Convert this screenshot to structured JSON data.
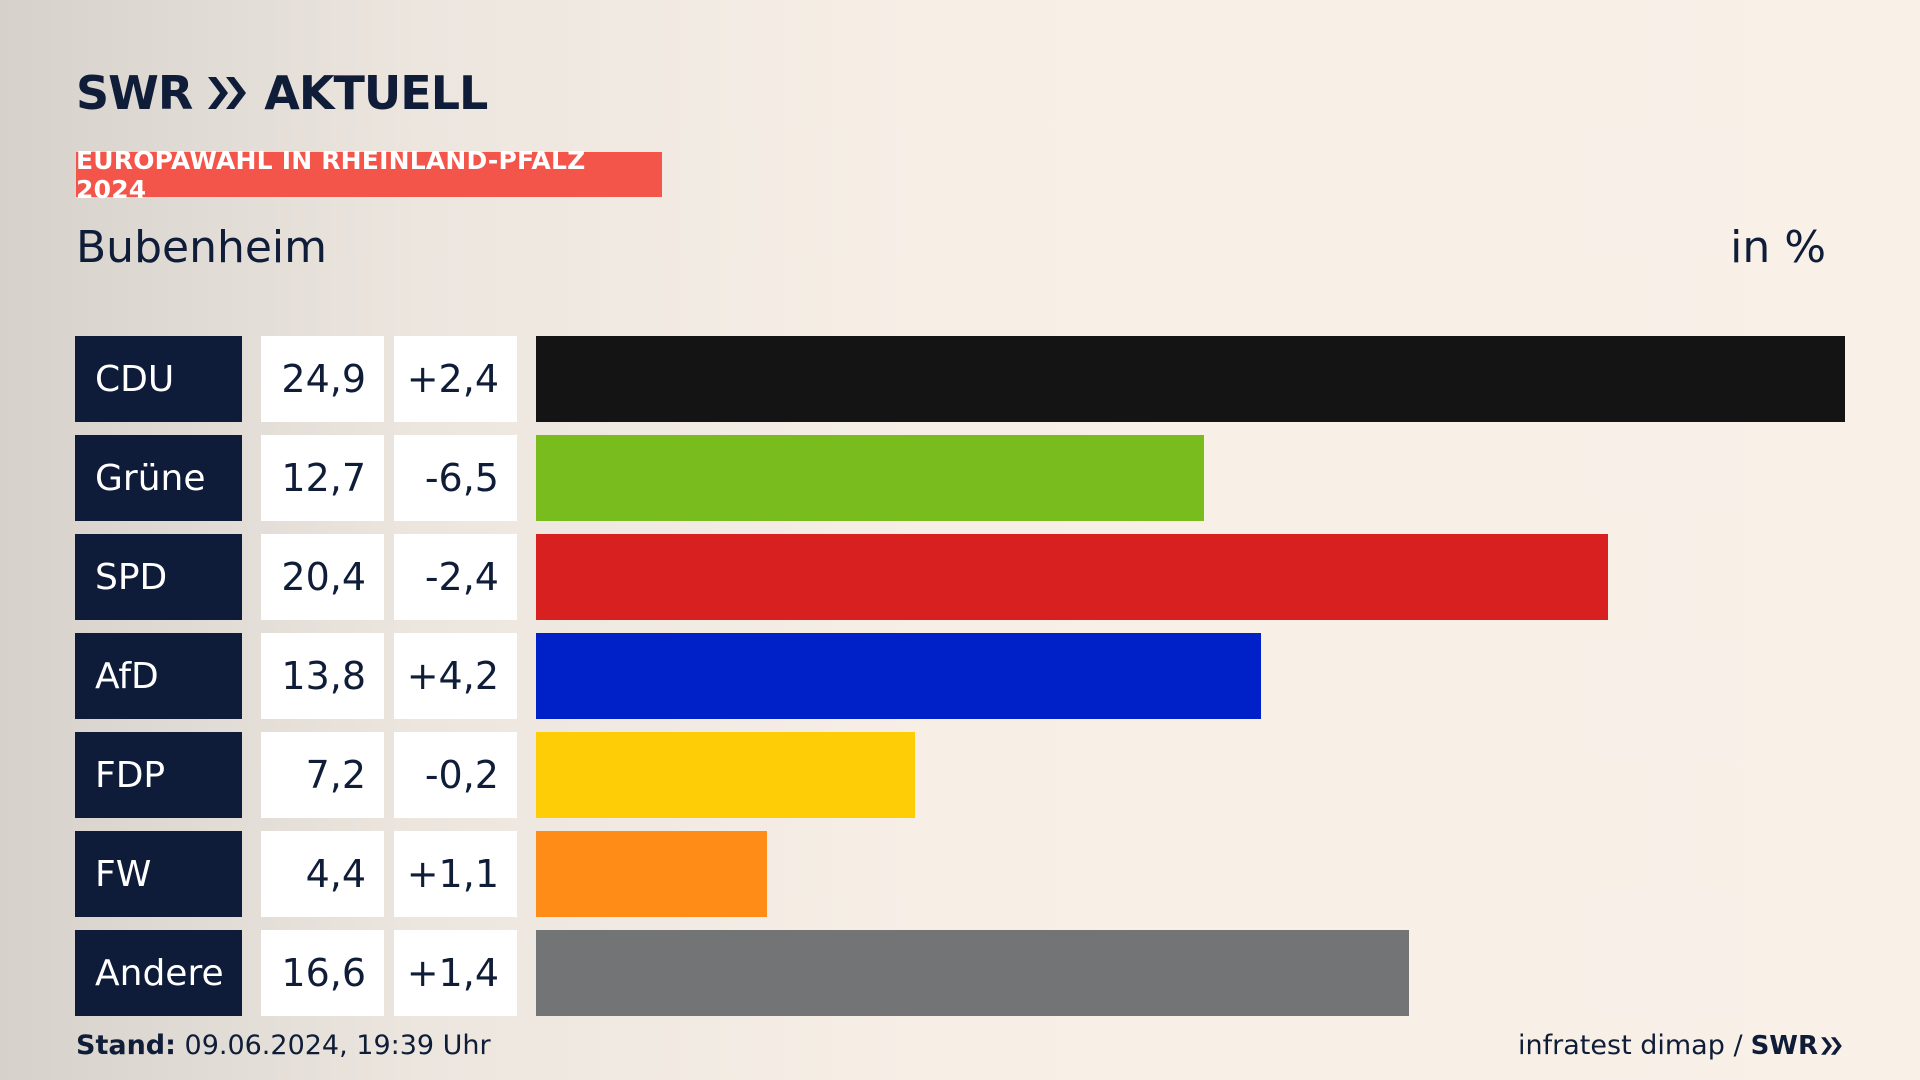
{
  "brand": {
    "logo_text": "SWR",
    "logo_suffix": "AKTUELL"
  },
  "tag_label": "EUROPAWAHL IN RHEINLAND-PFALZ 2024",
  "place": "Bubenheim",
  "unit_label": "in %",
  "footer": {
    "stand_label": "Stand:",
    "stand_value": "09.06.2024, 19:39 Uhr",
    "source": "infratest dimap /",
    "source_logo": "SWR"
  },
  "chart_data": {
    "type": "bar",
    "orientation": "horizontal",
    "categories": [
      "CDU",
      "Grüne",
      "SPD",
      "AfD",
      "FDP",
      "FW",
      "Andere"
    ],
    "values": [
      24.9,
      12.7,
      20.4,
      13.8,
      7.2,
      4.4,
      16.6
    ],
    "value_labels": [
      "24,9",
      "12,7",
      "20,4",
      "13,8",
      "7,2",
      "4,4",
      "16,6"
    ],
    "changes": [
      2.4,
      -6.5,
      -2.4,
      4.2,
      -0.2,
      1.1,
      1.4
    ],
    "change_labels": [
      "+2,4",
      "-6,5",
      "-2,4",
      "+4,2",
      "-0,2",
      "+1,1",
      "+1,4"
    ],
    "colors": [
      "#141414",
      "#78bc1e",
      "#d7201f",
      "#0021c8",
      "#ffcd05",
      "#ff8c16",
      "#737476"
    ],
    "xlim": [
      0,
      24.9
    ]
  }
}
